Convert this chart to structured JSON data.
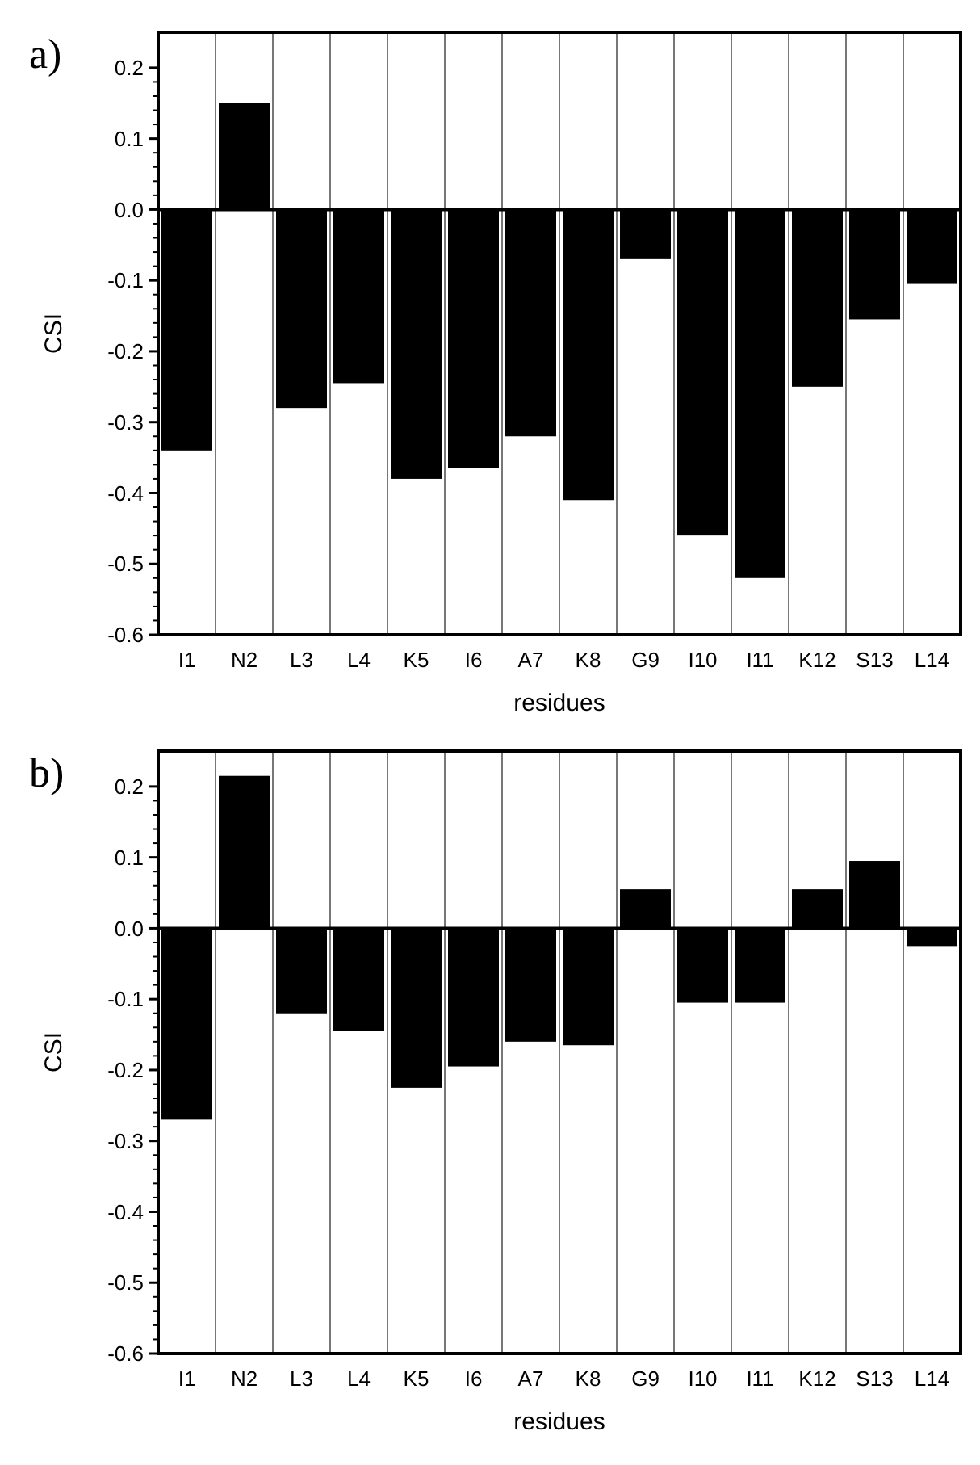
{
  "chart_data": [
    {
      "type": "bar",
      "xlabel": "residues",
      "ylabel": "CSI",
      "annotations": [
        "a)"
      ],
      "categories": [
        "I1",
        "N2",
        "L3",
        "L4",
        "K5",
        "I6",
        "A7",
        "K8",
        "G9",
        "I10",
        "I11",
        "K12",
        "S13",
        "L14"
      ],
      "values": [
        -0.34,
        0.15,
        -0.28,
        -0.245,
        -0.38,
        -0.365,
        -0.32,
        -0.41,
        -0.07,
        -0.46,
        -0.52,
        -0.25,
        -0.155,
        -0.105
      ],
      "color": "#000000",
      "ylim": [
        -0.6,
        0.25
      ],
      "yticks": [
        {
          "value": -0.6,
          "label": "-0.6"
        },
        {
          "value": -0.5,
          "label": "-0.5"
        },
        {
          "value": -0.4,
          "label": "-0.4"
        },
        {
          "value": -0.3,
          "label": "-0.3"
        },
        {
          "value": -0.2,
          "label": "-0.2"
        },
        {
          "value": -0.1,
          "label": "-0.1"
        },
        {
          "value": 0,
          "label": "0.0"
        },
        {
          "value": 0.1,
          "label": "0.1"
        },
        {
          "value": 0.2,
          "label": "0.2"
        }
      ],
      "grid": "x"
    },
    {
      "type": "bar",
      "xlabel": "residues",
      "ylabel": "CSI",
      "annotations": [
        "b)"
      ],
      "categories": [
        "I1",
        "N2",
        "L3",
        "L4",
        "K5",
        "I6",
        "A7",
        "K8",
        "G9",
        "I10",
        "I11",
        "K12",
        "S13",
        "L14"
      ],
      "values": [
        -0.27,
        0.215,
        -0.12,
        -0.145,
        -0.225,
        -0.195,
        -0.16,
        -0.165,
        0.055,
        -0.105,
        -0.105,
        0.055,
        0.095,
        -0.025
      ],
      "color": "#000000",
      "ylim": [
        -0.6,
        0.25
      ],
      "yticks": [
        {
          "value": -0.6,
          "label": "-0.6"
        },
        {
          "value": -0.5,
          "label": "-0.5"
        },
        {
          "value": -0.4,
          "label": "-0.4"
        },
        {
          "value": -0.3,
          "label": "-0.3"
        },
        {
          "value": -0.2,
          "label": "-0.2"
        },
        {
          "value": -0.1,
          "label": "-0.1"
        },
        {
          "value": 0,
          "label": "0.0"
        },
        {
          "value": 0.1,
          "label": "0.1"
        },
        {
          "value": 0.2,
          "label": "0.2"
        }
      ],
      "grid": "x"
    }
  ]
}
